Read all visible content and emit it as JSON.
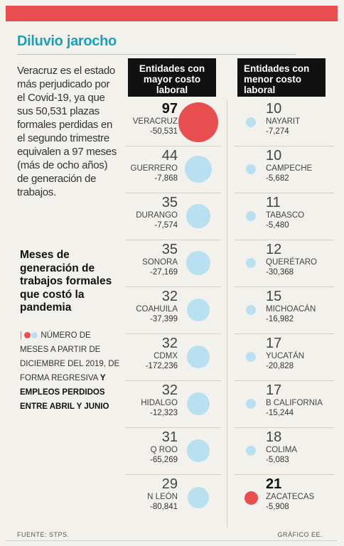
{
  "title": "Diluvio jarocho",
  "intro": "Veracruz es el estado más perjudicado por el Covid-19, ya que sus 50,531 plazas formales perdidas en el segundo trimestre equivalen a 97 meses (más de ocho años) de generación de trabajos.",
  "legend": {
    "title": "Meses de generación de trabajos formales que costó la pandemia",
    "text_regular": "NÚMERO DE MESES A PARTIR DE DICIEMBRE DEL 2019, DE FORMA REGRESIVA",
    "text_bold": "Y EMPLEOS PERDIDOS ENTRE ABRIL Y JUNIO"
  },
  "headers": {
    "left": "Entidades con mayor costo laboral",
    "right": "Entidades con menor costo laboral"
  },
  "colors": {
    "highlight": "#e84e4f",
    "bubble": "#b8e0f0",
    "accent": "#1aa0b8"
  },
  "chart_data": {
    "type": "bubble",
    "encoding": "bubble area proportional to months",
    "series": [
      {
        "group": "mayor costo laboral",
        "points": [
          {
            "state": "VERACRUZ",
            "months": 97,
            "jobs": "-50,531",
            "highlight": true
          },
          {
            "state": "GUERRERO",
            "months": 44,
            "jobs": "-7,868",
            "highlight": false
          },
          {
            "state": "DURANGO",
            "months": 35,
            "jobs": "-7,574",
            "highlight": false
          },
          {
            "state": "SONORA",
            "months": 35,
            "jobs": "-27,169",
            "highlight": false
          },
          {
            "state": "COAHUILA",
            "months": 32,
            "jobs": "-37,399",
            "highlight": false
          },
          {
            "state": "CDMX",
            "months": 32,
            "jobs": "-172,236",
            "highlight": false
          },
          {
            "state": "HIDALGO",
            "months": 32,
            "jobs": "-12,323",
            "highlight": false
          },
          {
            "state": "Q ROO",
            "months": 31,
            "jobs": "-65,269",
            "highlight": false
          },
          {
            "state": "N LEÓN",
            "months": 29,
            "jobs": "-80,841",
            "highlight": false
          }
        ]
      },
      {
        "group": "menor costo laboral",
        "points": [
          {
            "state": "NAYARIT",
            "months": 10,
            "jobs": "-7,274",
            "highlight": false
          },
          {
            "state": "CAMPECHE",
            "months": 10,
            "jobs": "-5,682",
            "highlight": false
          },
          {
            "state": "TABASCO",
            "months": 11,
            "jobs": "-5,480",
            "highlight": false
          },
          {
            "state": "QUERÉTARO",
            "months": 12,
            "jobs": "-30,368",
            "highlight": false
          },
          {
            "state": "MICHOACÁN",
            "months": 15,
            "jobs": "-16,982",
            "highlight": false
          },
          {
            "state": "YUCATÁN",
            "months": 17,
            "jobs": "-20,828",
            "highlight": false
          },
          {
            "state": "B CALIFORNIA",
            "months": 17,
            "jobs": "-15,244",
            "highlight": false
          },
          {
            "state": "COLIMA",
            "months": 18,
            "jobs": "-5,083",
            "highlight": false
          },
          {
            "state": "ZACATECAS",
            "months": 21,
            "jobs": "-5,908",
            "highlight": true
          }
        ]
      }
    ]
  },
  "footer": {
    "source": "FUENTE: STPS.",
    "credit": "GRÁFICO EE."
  }
}
